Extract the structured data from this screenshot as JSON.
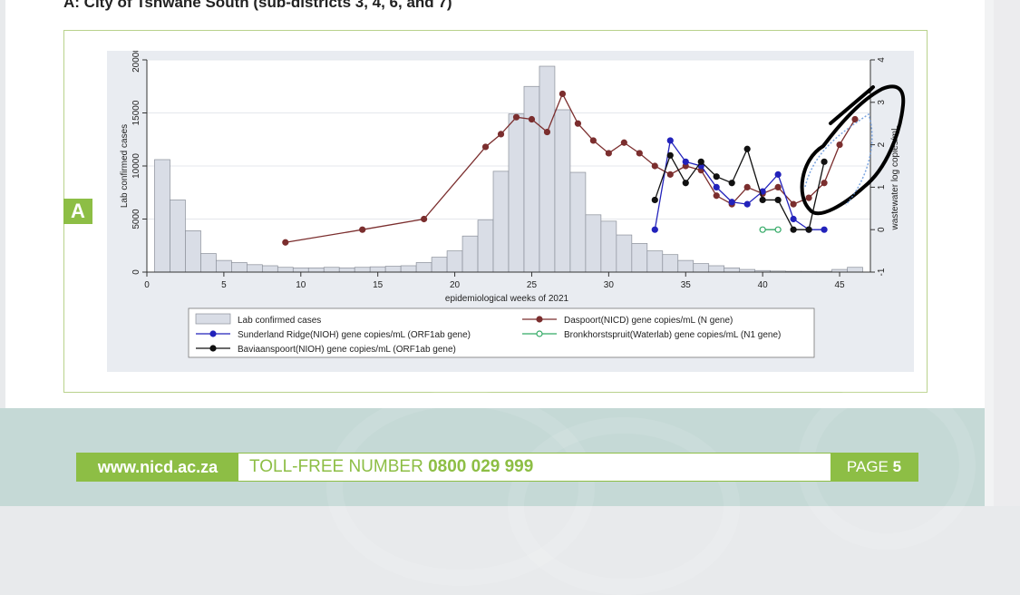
{
  "page_title": "A: City of Tshwane  South (sub-districts 3, 4, 6, and 7)",
  "panel_tag": "A",
  "footer": {
    "url": "www.nicd.ac.za",
    "toll_label": "TOLL-FREE NUMBER",
    "toll_number": "0800 029 999",
    "page_label": "PAGE",
    "page_number": "5"
  },
  "chart_data": {
    "type": "bar",
    "title": "",
    "xlabel": "epidemiological weeks of 2021",
    "ylabel": "Lab  confirmed cases",
    "y2label": "wastewater log copies/mL",
    "xlim": [
      0,
      47
    ],
    "ylim": [
      0,
      20000
    ],
    "y2lim": [
      -1,
      4
    ],
    "xticks": [
      "0",
      "5",
      "10",
      "15",
      "20",
      "25",
      "30",
      "35",
      "40",
      "45"
    ],
    "yticks": [
      "0",
      "5000",
      "10000",
      "15000",
      "20000"
    ],
    "y2ticks": [
      "-1",
      "0",
      "1",
      "2",
      "3",
      "4"
    ],
    "bars": {
      "name": "Lab  confirmed cases",
      "color": "#d9dde6",
      "x": [
        1,
        2,
        3,
        4,
        5,
        6,
        7,
        8,
        9,
        10,
        11,
        12,
        13,
        14,
        15,
        16,
        17,
        18,
        19,
        20,
        21,
        22,
        23,
        24,
        25,
        26,
        27,
        28,
        29,
        30,
        31,
        32,
        33,
        34,
        35,
        36,
        37,
        38,
        39,
        40,
        41,
        42,
        43,
        44,
        45,
        46
      ],
      "values": [
        10600,
        6800,
        3900,
        1750,
        1100,
        900,
        700,
        600,
        450,
        400,
        400,
        450,
        400,
        450,
        500,
        550,
        600,
        900,
        1400,
        2000,
        3400,
        4900,
        9500,
        14900,
        17500,
        19400,
        15300,
        9400,
        5400,
        4800,
        3500,
        2700,
        2000,
        1650,
        1100,
        800,
        600,
        400,
        250,
        150,
        100,
        80,
        80,
        80,
        250,
        450
      ]
    },
    "series": [
      {
        "name": "Daspoort(NICD) gene copies/mL (N gene)",
        "color": "#7b2e2e",
        "x": [
          9,
          14,
          18,
          22,
          23,
          24,
          25,
          26,
          27,
          28,
          29,
          30,
          31,
          32,
          33,
          34,
          35,
          36,
          37,
          38,
          39,
          40,
          41,
          42,
          43,
          44,
          45,
          46
        ],
        "values": [
          -0.3,
          0.0,
          0.25,
          1.95,
          2.25,
          2.65,
          2.6,
          2.3,
          3.2,
          2.5,
          2.1,
          1.8,
          2.05,
          1.8,
          1.5,
          1.3,
          1.5,
          1.4,
          0.8,
          0.6,
          1.0,
          0.85,
          1.0,
          0.6,
          0.75,
          1.1,
          2.0,
          2.6
        ]
      },
      {
        "name": "Sunderland Ridge(NIOH) gene copies/mL (ORF1ab gene)",
        "color": "#2222bb",
        "x": [
          33,
          34,
          35,
          36,
          37,
          38,
          39,
          40,
          41,
          42,
          43,
          44
        ],
        "values": [
          0.0,
          2.1,
          1.6,
          1.5,
          1.0,
          0.65,
          0.6,
          0.9,
          1.3,
          0.25,
          0.0,
          0.0
        ]
      },
      {
        "name": "Bronkhorstspruit(Waterlab) gene copies/mL (N1 gene)",
        "color": "#33aa66",
        "x": [
          40,
          41
        ],
        "values": [
          0.0,
          0.0
        ]
      },
      {
        "name": "Baviaanspoort(NIOH) gene copies/mL (ORF1ab gene)",
        "color": "#111111",
        "x": [
          33,
          34,
          35,
          36,
          37,
          38,
          39,
          40,
          41,
          42,
          43,
          44
        ],
        "values": [
          0.7,
          1.75,
          1.1,
          1.6,
          1.25,
          1.1,
          1.9,
          0.7,
          0.7,
          0.0,
          0.0,
          1.6
        ]
      }
    ],
    "legend": [
      "Lab  confirmed cases",
      "Daspoort(NICD) gene copies/mL (N gene)",
      "Sunderland Ridge(NIOH) gene copies/mL (ORF1ab gene)",
      "Bronkhorstspruit(Waterlab) gene copies/mL (N1 gene)",
      "Baviaanspoort(NIOH) gene copies/mL (ORF1ab gene)"
    ]
  }
}
